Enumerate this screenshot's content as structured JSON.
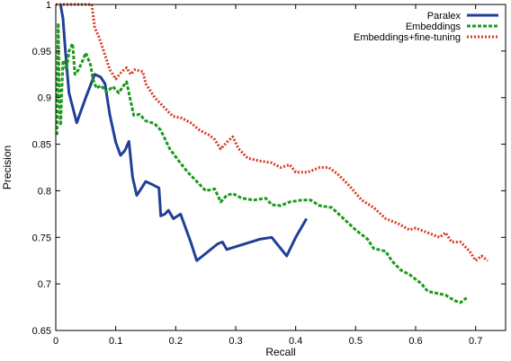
{
  "chart_data": {
    "type": "line",
    "title": "",
    "xlabel": "Recall",
    "ylabel": "Precision",
    "xlim": [
      0,
      0.75
    ],
    "ylim": [
      0.65,
      1
    ],
    "x_ticks": [
      0,
      0.1,
      0.2,
      0.3,
      0.4,
      0.5,
      0.6,
      0.7
    ],
    "x_tick_labels": [
      "0",
      "0.1",
      "0.2",
      "0.3",
      "0.4",
      "0.5",
      "0.6",
      "0.7"
    ],
    "y_ticks": [
      0.65,
      0.7,
      0.75,
      0.8,
      0.85,
      0.9,
      0.95,
      1
    ],
    "y_tick_labels": [
      "0.65",
      "0.7",
      "0.75",
      "0.8",
      "0.85",
      "0.9",
      "0.95",
      "1"
    ],
    "grid": false,
    "legend_position": "top-right",
    "series": [
      {
        "name": "Paralex",
        "color": "#1f3f99",
        "dash": "solid",
        "points": [
          [
            0.008,
            1.0
          ],
          [
            0.012,
            0.985
          ],
          [
            0.016,
            0.95
          ],
          [
            0.022,
            0.905
          ],
          [
            0.035,
            0.873
          ],
          [
            0.05,
            0.9
          ],
          [
            0.065,
            0.925
          ],
          [
            0.075,
            0.922
          ],
          [
            0.082,
            0.915
          ],
          [
            0.09,
            0.882
          ],
          [
            0.1,
            0.852
          ],
          [
            0.108,
            0.838
          ],
          [
            0.115,
            0.843
          ],
          [
            0.122,
            0.853
          ],
          [
            0.128,
            0.815
          ],
          [
            0.135,
            0.795
          ],
          [
            0.142,
            0.802
          ],
          [
            0.15,
            0.81
          ],
          [
            0.16,
            0.807
          ],
          [
            0.172,
            0.803
          ],
          [
            0.175,
            0.773
          ],
          [
            0.182,
            0.775
          ],
          [
            0.188,
            0.779
          ],
          [
            0.196,
            0.77
          ],
          [
            0.208,
            0.775
          ],
          [
            0.225,
            0.745
          ],
          [
            0.235,
            0.725
          ],
          [
            0.245,
            0.73
          ],
          [
            0.27,
            0.743
          ],
          [
            0.278,
            0.745
          ],
          [
            0.285,
            0.737
          ],
          [
            0.3,
            0.74
          ],
          [
            0.34,
            0.748
          ],
          [
            0.36,
            0.75
          ],
          [
            0.385,
            0.73
          ],
          [
            0.4,
            0.75
          ],
          [
            0.418,
            0.77
          ]
        ]
      },
      {
        "name": "Embeddings",
        "color": "#1a9a1a",
        "dash": "dashed",
        "points": [
          [
            0.002,
            0.86
          ],
          [
            0.004,
            0.98
          ],
          [
            0.006,
            0.9
          ],
          [
            0.008,
            0.87
          ],
          [
            0.012,
            0.94
          ],
          [
            0.018,
            0.93
          ],
          [
            0.022,
            0.95
          ],
          [
            0.028,
            0.958
          ],
          [
            0.032,
            0.925
          ],
          [
            0.038,
            0.93
          ],
          [
            0.045,
            0.94
          ],
          [
            0.05,
            0.948
          ],
          [
            0.058,
            0.935
          ],
          [
            0.062,
            0.92
          ],
          [
            0.068,
            0.91
          ],
          [
            0.075,
            0.913
          ],
          [
            0.085,
            0.906
          ],
          [
            0.095,
            0.912
          ],
          [
            0.105,
            0.905
          ],
          [
            0.112,
            0.912
          ],
          [
            0.118,
            0.917
          ],
          [
            0.125,
            0.896
          ],
          [
            0.13,
            0.881
          ],
          [
            0.14,
            0.882
          ],
          [
            0.15,
            0.875
          ],
          [
            0.165,
            0.872
          ],
          [
            0.175,
            0.865
          ],
          [
            0.19,
            0.845
          ],
          [
            0.205,
            0.832
          ],
          [
            0.22,
            0.82
          ],
          [
            0.235,
            0.81
          ],
          [
            0.25,
            0.8
          ],
          [
            0.265,
            0.802
          ],
          [
            0.275,
            0.788
          ],
          [
            0.285,
            0.795
          ],
          [
            0.295,
            0.797
          ],
          [
            0.31,
            0.792
          ],
          [
            0.33,
            0.79
          ],
          [
            0.35,
            0.792
          ],
          [
            0.36,
            0.785
          ],
          [
            0.375,
            0.784
          ],
          [
            0.39,
            0.788
          ],
          [
            0.41,
            0.79
          ],
          [
            0.425,
            0.79
          ],
          [
            0.44,
            0.784
          ],
          [
            0.46,
            0.782
          ],
          [
            0.48,
            0.77
          ],
          [
            0.5,
            0.758
          ],
          [
            0.52,
            0.748
          ],
          [
            0.53,
            0.738
          ],
          [
            0.55,
            0.735
          ],
          [
            0.56,
            0.725
          ],
          [
            0.575,
            0.715
          ],
          [
            0.59,
            0.71
          ],
          [
            0.61,
            0.7
          ],
          [
            0.62,
            0.692
          ],
          [
            0.635,
            0.69
          ],
          [
            0.65,
            0.688
          ],
          [
            0.665,
            0.682
          ],
          [
            0.675,
            0.68
          ],
          [
            0.685,
            0.685
          ]
        ]
      },
      {
        "name": "Embeddings+fine-tuning",
        "color": "#d83a24",
        "dash": "dotted",
        "points": [
          [
            0.0,
            1.0
          ],
          [
            0.05,
            1.0
          ],
          [
            0.06,
            1.0
          ],
          [
            0.065,
            0.975
          ],
          [
            0.072,
            0.965
          ],
          [
            0.08,
            0.95
          ],
          [
            0.09,
            0.93
          ],
          [
            0.1,
            0.92
          ],
          [
            0.11,
            0.928
          ],
          [
            0.118,
            0.932
          ],
          [
            0.125,
            0.925
          ],
          [
            0.132,
            0.93
          ],
          [
            0.145,
            0.928
          ],
          [
            0.15,
            0.915
          ],
          [
            0.165,
            0.9
          ],
          [
            0.18,
            0.89
          ],
          [
            0.195,
            0.88
          ],
          [
            0.21,
            0.878
          ],
          [
            0.225,
            0.873
          ],
          [
            0.24,
            0.865
          ],
          [
            0.255,
            0.86
          ],
          [
            0.265,
            0.855
          ],
          [
            0.275,
            0.845
          ],
          [
            0.285,
            0.852
          ],
          [
            0.295,
            0.858
          ],
          [
            0.305,
            0.845
          ],
          [
            0.32,
            0.835
          ],
          [
            0.34,
            0.832
          ],
          [
            0.36,
            0.83
          ],
          [
            0.375,
            0.825
          ],
          [
            0.39,
            0.828
          ],
          [
            0.4,
            0.82
          ],
          [
            0.42,
            0.82
          ],
          [
            0.44,
            0.825
          ],
          [
            0.455,
            0.825
          ],
          [
            0.47,
            0.818
          ],
          [
            0.49,
            0.805
          ],
          [
            0.51,
            0.79
          ],
          [
            0.53,
            0.782
          ],
          [
            0.55,
            0.77
          ],
          [
            0.57,
            0.765
          ],
          [
            0.59,
            0.758
          ],
          [
            0.6,
            0.76
          ],
          [
            0.62,
            0.755
          ],
          [
            0.64,
            0.75
          ],
          [
            0.65,
            0.755
          ],
          [
            0.66,
            0.745
          ],
          [
            0.675,
            0.745
          ],
          [
            0.69,
            0.735
          ],
          [
            0.7,
            0.725
          ],
          [
            0.71,
            0.73
          ],
          [
            0.72,
            0.725
          ]
        ]
      }
    ]
  }
}
